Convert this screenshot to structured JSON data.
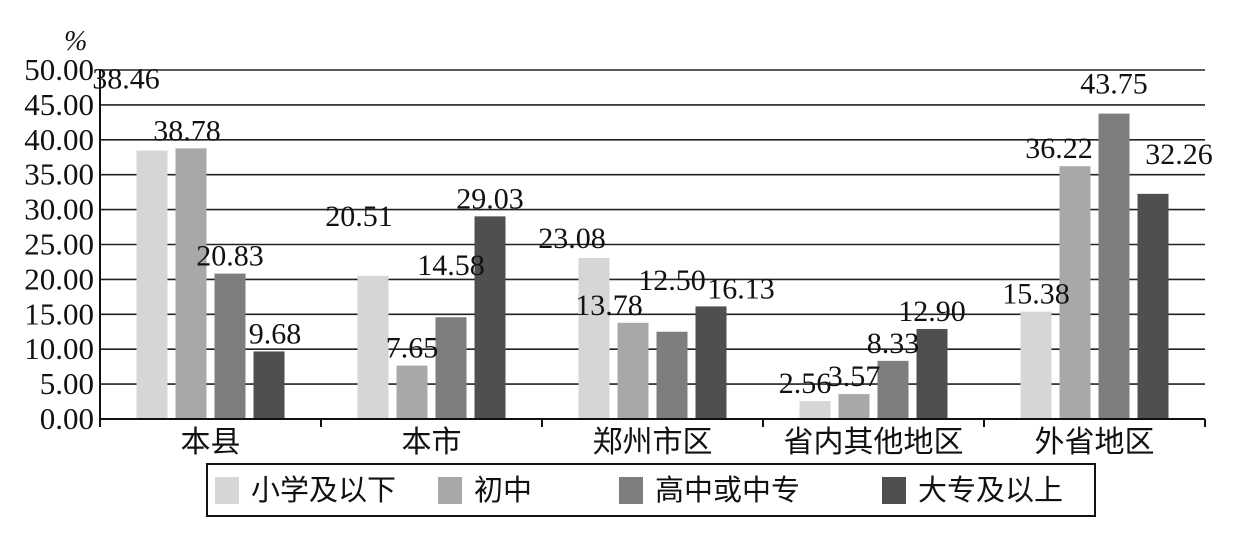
{
  "chart_data": {
    "type": "bar",
    "unit_label": "%",
    "categories": [
      "本县",
      "本市",
      "郑州市区",
      "省内其他地区",
      "外省地区"
    ],
    "series": [
      {
        "name": "小学及以下",
        "color": "#d6d6d6",
        "values": [
          38.46,
          20.51,
          23.08,
          2.56,
          15.38
        ]
      },
      {
        "name": "初中",
        "color": "#a8a8a8",
        "values": [
          38.78,
          7.65,
          13.78,
          3.57,
          36.22
        ]
      },
      {
        "name": "高中或中专",
        "color": "#7e7e7e",
        "values": [
          20.83,
          14.58,
          12.5,
          8.33,
          43.75
        ]
      },
      {
        "name": "大专及以上",
        "color": "#4f4f4f",
        "values": [
          9.68,
          29.03,
          16.13,
          12.9,
          32.26
        ]
      }
    ],
    "value_labels": [
      [
        "38.46",
        "20.51",
        "23.08",
        "2.56",
        "15.38"
      ],
      [
        "38.78",
        "7.65",
        "13.78",
        "3.57",
        "36.22"
      ],
      [
        "20.83",
        "14.58",
        "12.50",
        "8.33",
        "43.75"
      ],
      [
        "9.68",
        "29.03",
        "16.13",
        "12.90",
        "32.26"
      ]
    ],
    "y_ticks": [
      "0.00",
      "5.00",
      "10.00",
      "15.00",
      "20.00",
      "25.00",
      "30.00",
      "35.00",
      "40.00",
      "45.00",
      "50.00"
    ],
    "ylim": [
      0,
      50
    ],
    "grid": true,
    "legend_position": "bottom"
  }
}
